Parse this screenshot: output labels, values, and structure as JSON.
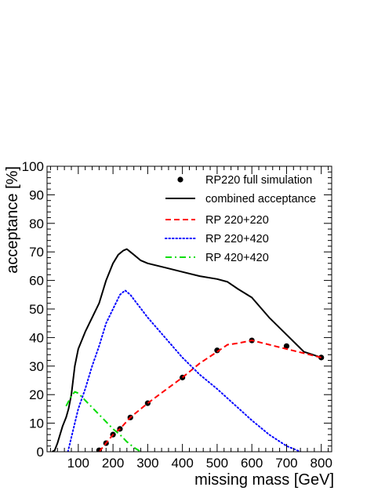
{
  "chart_data": {
    "type": "line",
    "title": "",
    "xlabel": "missing mass [GeV]",
    "ylabel": "acceptance [%]",
    "xlim": [
      10,
      830
    ],
    "ylim": [
      0,
      100
    ],
    "x_ticks": [
      "100",
      "200",
      "300",
      "400",
      "500",
      "600",
      "700",
      "800"
    ],
    "y_ticks": [
      "0",
      "10",
      "20",
      "30",
      "40",
      "50",
      "60",
      "70",
      "80",
      "90",
      "100"
    ],
    "grid": false,
    "legend_position": "top-right",
    "series": [
      {
        "name": "RP220 full simulation",
        "style": "markers",
        "color": "#000000",
        "x": [
          160,
          180,
          200,
          220,
          250,
          300,
          400,
          500,
          600,
          700,
          800
        ],
        "y": [
          0.5,
          3,
          6,
          8,
          12,
          17,
          26,
          35.5,
          39,
          37,
          33
        ]
      },
      {
        "name": "combined acceptance",
        "style": "solid",
        "color": "#000000",
        "x": [
          25,
          32,
          40,
          55,
          65,
          72,
          80,
          90,
          100,
          120,
          140,
          160,
          180,
          200,
          215,
          230,
          240,
          250,
          260,
          280,
          300,
          350,
          400,
          450,
          500,
          530,
          560,
          600,
          650,
          700,
          750,
          775,
          800
        ],
        "y": [
          0,
          0.5,
          3,
          9,
          12,
          15,
          20,
          30,
          36,
          42,
          47,
          52,
          60,
          66,
          69,
          70.5,
          71,
          70,
          69,
          67,
          66,
          64.5,
          63,
          61.5,
          60.5,
          59.5,
          57,
          54,
          47,
          41,
          35,
          34,
          33
        ]
      },
      {
        "name": "RP 220+220",
        "style": "dashed",
        "color": "#ff0000",
        "x": [
          160,
          180,
          200,
          220,
          250,
          300,
          350,
          400,
          450,
          500,
          530,
          560,
          600,
          650,
          700,
          750,
          800
        ],
        "y": [
          0,
          3,
          6,
          8,
          12,
          17,
          21.5,
          26,
          31,
          35,
          37.5,
          38,
          39,
          37.5,
          36,
          34.5,
          33
        ]
      },
      {
        "name": "RP 220+420",
        "style": "dotted",
        "color": "#0000ff",
        "x": [
          70,
          80,
          90,
          100,
          120,
          140,
          160,
          180,
          200,
          220,
          235,
          250,
          300,
          350,
          400,
          450,
          500,
          550,
          600,
          650,
          700,
          740
        ],
        "y": [
          0,
          5,
          10,
          15,
          22,
          30,
          37,
          45,
          50,
          55,
          56.5,
          55,
          47,
          40,
          33,
          27,
          22,
          16.5,
          11,
          6,
          2,
          0
        ]
      },
      {
        "name": "RP 420+420",
        "style": "dashdot",
        "color": "#00dd00",
        "x": [
          65,
          80,
          90,
          100,
          120,
          140,
          160,
          180,
          200,
          220,
          240,
          260,
          280
        ],
        "y": [
          16,
          19.5,
          21,
          20.5,
          18,
          15.5,
          13,
          10.5,
          8,
          6,
          3.5,
          1.5,
          0
        ]
      }
    ]
  }
}
